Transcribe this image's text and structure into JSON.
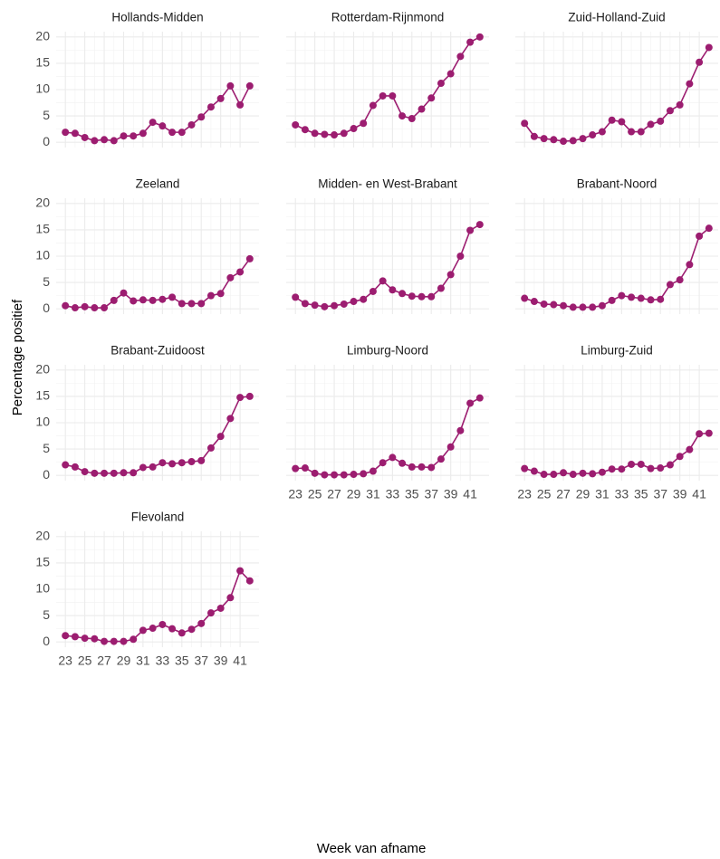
{
  "xlabel": "Week van afname",
  "ylabel": "Percentage positief",
  "chart_data": [
    {
      "type": "line",
      "title": "Hollands-Midden",
      "color": "#9c1d70",
      "grid": true,
      "x": [
        23,
        24,
        25,
        26,
        27,
        28,
        29,
        30,
        31,
        32,
        33,
        34,
        35,
        36,
        37,
        38,
        39,
        40,
        41,
        42
      ],
      "values": [
        1.9,
        1.7,
        0.9,
        0.3,
        0.5,
        0.3,
        1.2,
        1.2,
        1.7,
        3.8,
        3.1,
        1.9,
        1.9,
        3.3,
        4.8,
        6.7,
        8.3,
        10.7,
        7.1,
        10.7
      ],
      "xlim": [
        22.05,
        42.95
      ],
      "xticks": [
        23,
        25,
        27,
        29,
        31,
        33,
        35,
        37,
        39,
        41
      ],
      "ylim": [
        -1,
        21
      ],
      "yticks": [
        0,
        5,
        10,
        15,
        20
      ]
    },
    {
      "type": "line",
      "title": "Rotterdam-Rijnmond",
      "color": "#9c1d70",
      "grid": true,
      "x": [
        23,
        24,
        25,
        26,
        27,
        28,
        29,
        30,
        31,
        32,
        33,
        34,
        35,
        36,
        37,
        38,
        39,
        40,
        41,
        42
      ],
      "values": [
        3.3,
        2.4,
        1.7,
        1.5,
        1.4,
        1.7,
        2.6,
        3.6,
        7.0,
        8.8,
        8.8,
        5.0,
        4.5,
        6.3,
        8.4,
        11.2,
        13.0,
        16.3,
        19.0,
        20.0
      ],
      "xlim": [
        22.05,
        42.95
      ],
      "xticks": [
        23,
        25,
        27,
        29,
        31,
        33,
        35,
        37,
        39,
        41
      ],
      "ylim": [
        -1,
        21
      ],
      "yticks": [
        0,
        5,
        10,
        15,
        20
      ]
    },
    {
      "type": "line",
      "title": "Zuid-Holland-Zuid",
      "color": "#9c1d70",
      "grid": true,
      "x": [
        23,
        24,
        25,
        26,
        27,
        28,
        29,
        30,
        31,
        32,
        33,
        34,
        35,
        36,
        37,
        38,
        39,
        40,
        41,
        42
      ],
      "values": [
        3.6,
        1.1,
        0.7,
        0.5,
        0.2,
        0.3,
        0.7,
        1.4,
        2.0,
        4.2,
        3.9,
        2.0,
        2.0,
        3.4,
        4.0,
        6.0,
        7.1,
        11.1,
        15.2,
        18.0
      ],
      "xlim": [
        22.05,
        42.95
      ],
      "xticks": [
        23,
        25,
        27,
        29,
        31,
        33,
        35,
        37,
        39,
        41
      ],
      "ylim": [
        -1,
        21
      ],
      "yticks": [
        0,
        5,
        10,
        15,
        20
      ]
    },
    {
      "type": "line",
      "title": "Zeeland",
      "color": "#9c1d70",
      "grid": true,
      "x": [
        23,
        24,
        25,
        26,
        27,
        28,
        29,
        30,
        31,
        32,
        33,
        34,
        35,
        36,
        37,
        38,
        39,
        40,
        41,
        42
      ],
      "values": [
        0.6,
        0.2,
        0.4,
        0.2,
        0.2,
        1.6,
        3.0,
        1.5,
        1.7,
        1.6,
        1.8,
        2.2,
        1.0,
        1.0,
        1.0,
        2.5,
        2.9,
        5.9,
        7.0,
        9.5
      ],
      "xlim": [
        22.05,
        42.95
      ],
      "xticks": [
        23,
        25,
        27,
        29,
        31,
        33,
        35,
        37,
        39,
        41
      ],
      "ylim": [
        -1,
        21
      ],
      "yticks": [
        0,
        5,
        10,
        15,
        20
      ]
    },
    {
      "type": "line",
      "title": "Midden- en West-Brabant",
      "color": "#9c1d70",
      "grid": true,
      "x": [
        23,
        24,
        25,
        26,
        27,
        28,
        29,
        30,
        31,
        32,
        33,
        34,
        35,
        36,
        37,
        38,
        39,
        40,
        41,
        42
      ],
      "values": [
        2.2,
        1.0,
        0.7,
        0.4,
        0.6,
        0.9,
        1.4,
        1.8,
        3.3,
        5.3,
        3.6,
        2.9,
        2.4,
        2.3,
        2.3,
        3.9,
        6.5,
        10.0,
        14.9,
        16.0
      ],
      "xlim": [
        22.05,
        42.95
      ],
      "xticks": [
        23,
        25,
        27,
        29,
        31,
        33,
        35,
        37,
        39,
        41
      ],
      "ylim": [
        -1,
        21
      ],
      "yticks": [
        0,
        5,
        10,
        15,
        20
      ]
    },
    {
      "type": "line",
      "title": "Brabant-Noord",
      "color": "#9c1d70",
      "grid": true,
      "x": [
        23,
        24,
        25,
        26,
        27,
        28,
        29,
        30,
        31,
        32,
        33,
        34,
        35,
        36,
        37,
        38,
        39,
        40,
        41,
        42
      ],
      "values": [
        2.0,
        1.4,
        0.9,
        0.8,
        0.6,
        0.3,
        0.3,
        0.3,
        0.6,
        1.6,
        2.5,
        2.2,
        2.0,
        1.7,
        1.8,
        4.6,
        5.5,
        8.4,
        13.8,
        15.3
      ],
      "xlim": [
        22.05,
        42.95
      ],
      "xticks": [
        23,
        25,
        27,
        29,
        31,
        33,
        35,
        37,
        39,
        41
      ],
      "ylim": [
        -1,
        21
      ],
      "yticks": [
        0,
        5,
        10,
        15,
        20
      ]
    },
    {
      "type": "line",
      "title": "Brabant-Zuidoost",
      "color": "#9c1d70",
      "grid": true,
      "x": [
        23,
        24,
        25,
        26,
        27,
        28,
        29,
        30,
        31,
        32,
        33,
        34,
        35,
        36,
        37,
        38,
        39,
        40,
        41,
        42
      ],
      "values": [
        2.0,
        1.6,
        0.7,
        0.4,
        0.4,
        0.4,
        0.5,
        0.5,
        1.5,
        1.6,
        2.4,
        2.2,
        2.4,
        2.6,
        2.8,
        5.2,
        7.4,
        10.8,
        14.8,
        15.0
      ],
      "xlim": [
        22.05,
        42.95
      ],
      "xticks": [
        23,
        25,
        27,
        29,
        31,
        33,
        35,
        37,
        39,
        41
      ],
      "ylim": [
        -1,
        21
      ],
      "yticks": [
        0,
        5,
        10,
        15,
        20
      ]
    },
    {
      "type": "line",
      "title": "Limburg-Noord",
      "color": "#9c1d70",
      "grid": true,
      "x": [
        23,
        24,
        25,
        26,
        27,
        28,
        29,
        30,
        31,
        32,
        33,
        34,
        35,
        36,
        37,
        38,
        39,
        40,
        41,
        42
      ],
      "values": [
        1.3,
        1.4,
        0.4,
        0.1,
        0.1,
        0.1,
        0.2,
        0.3,
        0.8,
        2.4,
        3.4,
        2.3,
        1.6,
        1.6,
        1.5,
        3.1,
        5.4,
        8.5,
        13.7,
        14.7
      ],
      "xlim": [
        22.05,
        42.95
      ],
      "xticks": [
        23,
        25,
        27,
        29,
        31,
        33,
        35,
        37,
        39,
        41
      ],
      "ylim": [
        -1,
        21
      ],
      "yticks": [
        0,
        5,
        10,
        15,
        20
      ]
    },
    {
      "type": "line",
      "title": "Limburg-Zuid",
      "color": "#9c1d70",
      "grid": true,
      "x": [
        23,
        24,
        25,
        26,
        27,
        28,
        29,
        30,
        31,
        32,
        33,
        34,
        35,
        36,
        37,
        38,
        39,
        40,
        41,
        42
      ],
      "values": [
        1.3,
        0.8,
        0.2,
        0.2,
        0.5,
        0.2,
        0.4,
        0.3,
        0.6,
        1.2,
        1.2,
        2.1,
        2.1,
        1.3,
        1.4,
        2.0,
        3.6,
        4.9,
        7.9,
        8.0
      ],
      "xlim": [
        22.05,
        42.95
      ],
      "xticks": [
        23,
        25,
        27,
        29,
        31,
        33,
        35,
        37,
        39,
        41
      ],
      "ylim": [
        -1,
        21
      ],
      "yticks": [
        0,
        5,
        10,
        15,
        20
      ]
    },
    {
      "type": "line",
      "title": "Flevoland",
      "color": "#9c1d70",
      "grid": true,
      "x": [
        23,
        24,
        25,
        26,
        27,
        28,
        29,
        30,
        31,
        32,
        33,
        34,
        35,
        36,
        37,
        38,
        39,
        40,
        41,
        42
      ],
      "values": [
        1.2,
        1.0,
        0.7,
        0.6,
        0.1,
        0.1,
        0.1,
        0.5,
        2.2,
        2.6,
        3.3,
        2.5,
        1.7,
        2.4,
        3.5,
        5.5,
        6.4,
        8.4,
        13.5,
        11.6
      ],
      "xlim": [
        22.05,
        42.95
      ],
      "xticks": [
        23,
        25,
        27,
        29,
        31,
        33,
        35,
        37,
        39,
        41
      ],
      "ylim": [
        -1,
        21
      ],
      "yticks": [
        0,
        5,
        10,
        15,
        20
      ]
    }
  ]
}
